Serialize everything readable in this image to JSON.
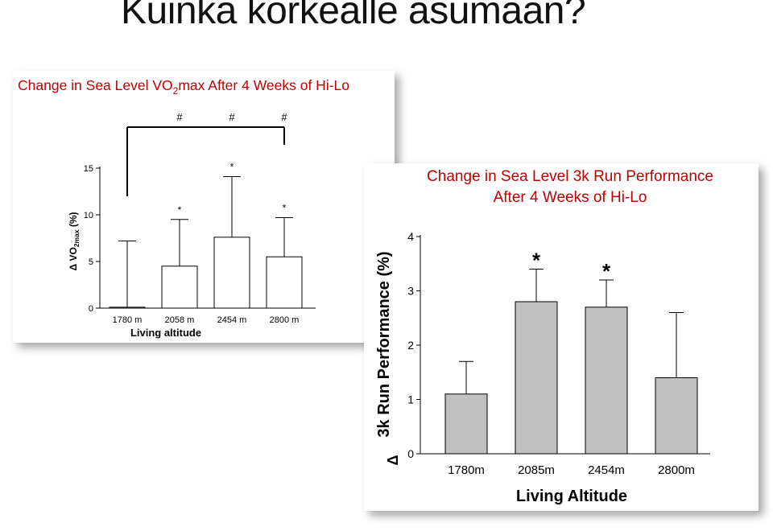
{
  "slide": {
    "title": "Kuinka korkealle asumaan?"
  },
  "colors": {
    "chart_title": "#c00000",
    "bar_fill_left": "#ffffff",
    "bar_fill_right": "#c0c0c0",
    "axis": "#000000"
  },
  "chart_data": [
    {
      "type": "bar",
      "title": "Change in Sea Level VO2max After 4 Weeks of Hi-Lo",
      "title_main": "Change in Sea Level VO",
      "title_subscript": "2",
      "title_rest": "max After 4 Weeks of Hi-Lo",
      "xlabel": "Living altitude",
      "ylabel": "Δ VO2max (%)",
      "ylabel_prefix": "Δ VO",
      "ylabel_subscript": "2max",
      "ylabel_suffix": " (%)",
      "categories": [
        "1780 m",
        "2058 m",
        "2454 m",
        "2800 m"
      ],
      "values": [
        0.1,
        4.5,
        7.6,
        5.5
      ],
      "errors": [
        7.1,
        5.0,
        6.5,
        4.2
      ],
      "ylim": [
        0,
        15
      ],
      "yticks": [
        "0",
        "5",
        "10",
        "15"
      ],
      "yticks_values": [
        0,
        5,
        10,
        15
      ],
      "significance": [
        "",
        "*",
        "*",
        "*"
      ],
      "bracket_marks": [
        "",
        "#",
        "#",
        "#"
      ],
      "grid": false
    },
    {
      "type": "bar",
      "title": "Change in Sea Level 3k Run Performance After 4 Weeks of Hi-Lo",
      "title_line1": "Change in Sea Level 3k Run Performance",
      "title_line2": "After 4 Weeks of Hi-Lo",
      "xlabel": "Living Altitude",
      "ylabel": "Δ 3k Run Performance (%)",
      "ylabel_prefix": "Δ",
      "ylabel_text": "3k Run Performance (%)",
      "categories": [
        "1780m",
        "2085m",
        "2454m",
        "2800m"
      ],
      "values": [
        1.1,
        2.8,
        2.7,
        1.4
      ],
      "errors": [
        0.6,
        0.6,
        0.5,
        1.2
      ],
      "ylim": [
        0,
        4
      ],
      "yticks": [
        "0",
        "1",
        "2",
        "3",
        "4"
      ],
      "yticks_values": [
        0,
        1,
        2,
        3,
        4
      ],
      "significance": [
        "",
        "*",
        "*",
        ""
      ],
      "grid": false
    }
  ]
}
